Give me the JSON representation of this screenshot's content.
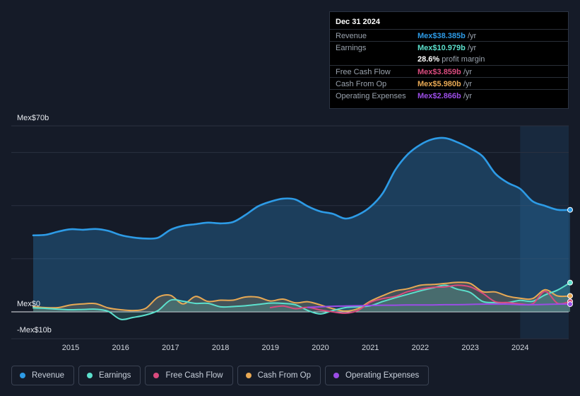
{
  "tooltip": {
    "date": "Dec 31 2024",
    "rows": [
      {
        "label": "Revenue",
        "value": "Mex$38.385b",
        "unit": "/yr",
        "color": "#2d9be6"
      },
      {
        "label": "Earnings",
        "value": "Mex$10.979b",
        "unit": "/yr",
        "color": "#5ce0cd"
      },
      {
        "label": "",
        "value": "28.6%",
        "unit": "profit margin",
        "color": "#ffffff"
      },
      {
        "label": "Free Cash Flow",
        "value": "Mex$3.859b",
        "unit": "/yr",
        "color": "#d94b7e"
      },
      {
        "label": "Cash From Op",
        "value": "Mex$5.980b",
        "unit": "/yr",
        "color": "#e8a954"
      },
      {
        "label": "Operating Expenses",
        "value": "Mex$2.866b",
        "unit": "/yr",
        "color": "#9b4de6"
      }
    ]
  },
  "chart_data": {
    "type": "area",
    "title": "",
    "xlabel": "",
    "ylabel": "",
    "ylim": [
      -10,
      70
    ],
    "y_tick_labels": [
      "Mex$70b",
      "Mex$0",
      "-Mex$10b"
    ],
    "x_tick_labels": [
      "2015",
      "2016",
      "2017",
      "2018",
      "2019",
      "2020",
      "2021",
      "2022",
      "2023",
      "2024"
    ],
    "x_ticks": [
      2015,
      2016,
      2017,
      2018,
      2019,
      2020,
      2021,
      2022,
      2023,
      2024
    ],
    "xlim": [
      2013.55,
      2025.0
    ],
    "forecast_shade_start": 2024.0,
    "series": [
      {
        "name": "Revenue",
        "color": "#2d9be6",
        "fill": true,
        "x": [
          2014.25,
          2014.5,
          2014.75,
          2015.0,
          2015.25,
          2015.5,
          2015.75,
          2016.0,
          2016.25,
          2016.5,
          2016.75,
          2017.0,
          2017.25,
          2017.5,
          2017.75,
          2018.0,
          2018.25,
          2018.5,
          2018.75,
          2019.0,
          2019.25,
          2019.5,
          2019.75,
          2020.0,
          2020.25,
          2020.5,
          2020.75,
          2021.0,
          2021.25,
          2021.5,
          2021.75,
          2022.0,
          2022.25,
          2022.5,
          2022.75,
          2023.0,
          2023.25,
          2023.5,
          2023.75,
          2024.0,
          2024.25,
          2024.5,
          2024.75,
          2025.0
        ],
        "values": [
          28.8,
          29.0,
          30.2,
          31.1,
          30.9,
          31.2,
          30.5,
          28.9,
          28.0,
          27.6,
          27.9,
          30.9,
          32.4,
          33.0,
          33.6,
          33.3,
          33.8,
          36.5,
          39.7,
          41.5,
          42.6,
          42.3,
          39.7,
          37.8,
          36.9,
          35.1,
          36.5,
          39.5,
          44.7,
          53.4,
          59.3,
          62.9,
          65.0,
          65.4,
          63.8,
          61.5,
          58.5,
          52.1,
          48.6,
          46.3,
          41.6,
          39.9,
          38.4,
          38.4
        ]
      },
      {
        "name": "Earnings",
        "color": "#5ce0cd",
        "fill": true,
        "x": [
          2014.25,
          2014.5,
          2014.75,
          2015.0,
          2015.25,
          2015.5,
          2015.75,
          2016.0,
          2016.25,
          2016.5,
          2016.75,
          2017.0,
          2017.25,
          2017.5,
          2017.75,
          2018.0,
          2018.25,
          2018.5,
          2018.75,
          2019.0,
          2019.25,
          2019.5,
          2019.75,
          2020.0,
          2020.25,
          2020.5,
          2020.75,
          2021.0,
          2021.25,
          2021.5,
          2021.75,
          2022.0,
          2022.25,
          2022.5,
          2022.75,
          2023.0,
          2023.25,
          2023.5,
          2023.75,
          2024.0,
          2024.25,
          2024.5,
          2024.75,
          2025.0
        ],
        "values": [
          1.5,
          1.3,
          1.0,
          0.8,
          0.9,
          1.0,
          0.2,
          -2.8,
          -2.1,
          -1.2,
          0.5,
          4.4,
          4.0,
          3.2,
          3.2,
          1.9,
          2.0,
          2.3,
          2.8,
          3.3,
          3.2,
          2.7,
          0.5,
          -0.8,
          0.5,
          1.6,
          1.9,
          2.3,
          3.9,
          5.3,
          6.6,
          7.9,
          9.0,
          10.0,
          8.5,
          7.3,
          3.9,
          3.5,
          3.5,
          4.3,
          4.0,
          6.4,
          8.2,
          11.0
        ]
      },
      {
        "name": "Free Cash Flow",
        "color": "#d94b7e",
        "fill": false,
        "x": [
          2019.0,
          2019.25,
          2019.5,
          2019.75,
          2020.0,
          2020.25,
          2020.5,
          2020.75,
          2021.0,
          2021.25,
          2021.5,
          2021.75,
          2022.0,
          2022.25,
          2022.5,
          2022.75,
          2023.0,
          2023.25,
          2023.5,
          2023.75,
          2024.0,
          2024.25,
          2024.5,
          2024.75,
          2025.0
        ],
        "values": [
          1.6,
          2.2,
          1.2,
          1.7,
          0.7,
          0.0,
          -0.5,
          0.5,
          3.6,
          5.0,
          5.8,
          7.6,
          8.5,
          9.2,
          9.4,
          10.0,
          9.4,
          7.0,
          3.8,
          3.5,
          3.0,
          3.0,
          7.7,
          3.2,
          3.9
        ]
      },
      {
        "name": "Cash From Op",
        "color": "#e8a954",
        "fill": true,
        "x": [
          2014.25,
          2014.5,
          2014.75,
          2015.0,
          2015.25,
          2015.5,
          2015.75,
          2016.0,
          2016.25,
          2016.5,
          2016.75,
          2017.0,
          2017.25,
          2017.5,
          2017.75,
          2018.0,
          2018.25,
          2018.5,
          2018.75,
          2019.0,
          2019.25,
          2019.5,
          2019.75,
          2020.0,
          2020.25,
          2020.5,
          2020.75,
          2021.0,
          2021.25,
          2021.5,
          2021.75,
          2022.0,
          2022.25,
          2022.5,
          2022.75,
          2023.0,
          2023.25,
          2023.5,
          2023.75,
          2024.0,
          2024.25,
          2024.5,
          2024.75,
          2025.0
        ],
        "values": [
          2.0,
          1.6,
          1.6,
          2.6,
          3.0,
          3.1,
          1.5,
          0.8,
          0.5,
          1.3,
          5.5,
          6.2,
          3.0,
          5.8,
          3.9,
          4.4,
          4.4,
          5.6,
          5.5,
          4.1,
          4.8,
          3.4,
          3.8,
          2.6,
          1.2,
          0.3,
          1.2,
          4.0,
          6.1,
          7.9,
          8.7,
          10.0,
          10.3,
          10.7,
          11.1,
          10.7,
          7.6,
          7.5,
          5.9,
          5.1,
          5.0,
          8.3,
          6.0,
          6.0
        ]
      },
      {
        "name": "Operating Expenses",
        "color": "#9b4de6",
        "fill": false,
        "x": [
          2019.75,
          2020.0,
          2020.25,
          2020.5,
          2020.75,
          2021.0,
          2021.25,
          2021.5,
          2021.75,
          2022.0,
          2022.25,
          2022.5,
          2022.75,
          2023.0,
          2023.25,
          2023.5,
          2023.75,
          2024.0,
          2024.25,
          2024.5,
          2024.75,
          2025.0
        ],
        "values": [
          1.7,
          1.9,
          2.1,
          2.2,
          2.3,
          2.4,
          2.5,
          2.5,
          2.6,
          2.6,
          2.6,
          2.7,
          2.7,
          2.8,
          2.9,
          2.9,
          2.9,
          2.7,
          2.7,
          2.8,
          2.9,
          2.9
        ]
      }
    ]
  },
  "legend": [
    {
      "label": "Revenue",
      "color": "#2d9be6"
    },
    {
      "label": "Earnings",
      "color": "#5ce0cd"
    },
    {
      "label": "Free Cash Flow",
      "color": "#d94b7e"
    },
    {
      "label": "Cash From Op",
      "color": "#e8a954"
    },
    {
      "label": "Operating Expenses",
      "color": "#9b4de6"
    }
  ]
}
